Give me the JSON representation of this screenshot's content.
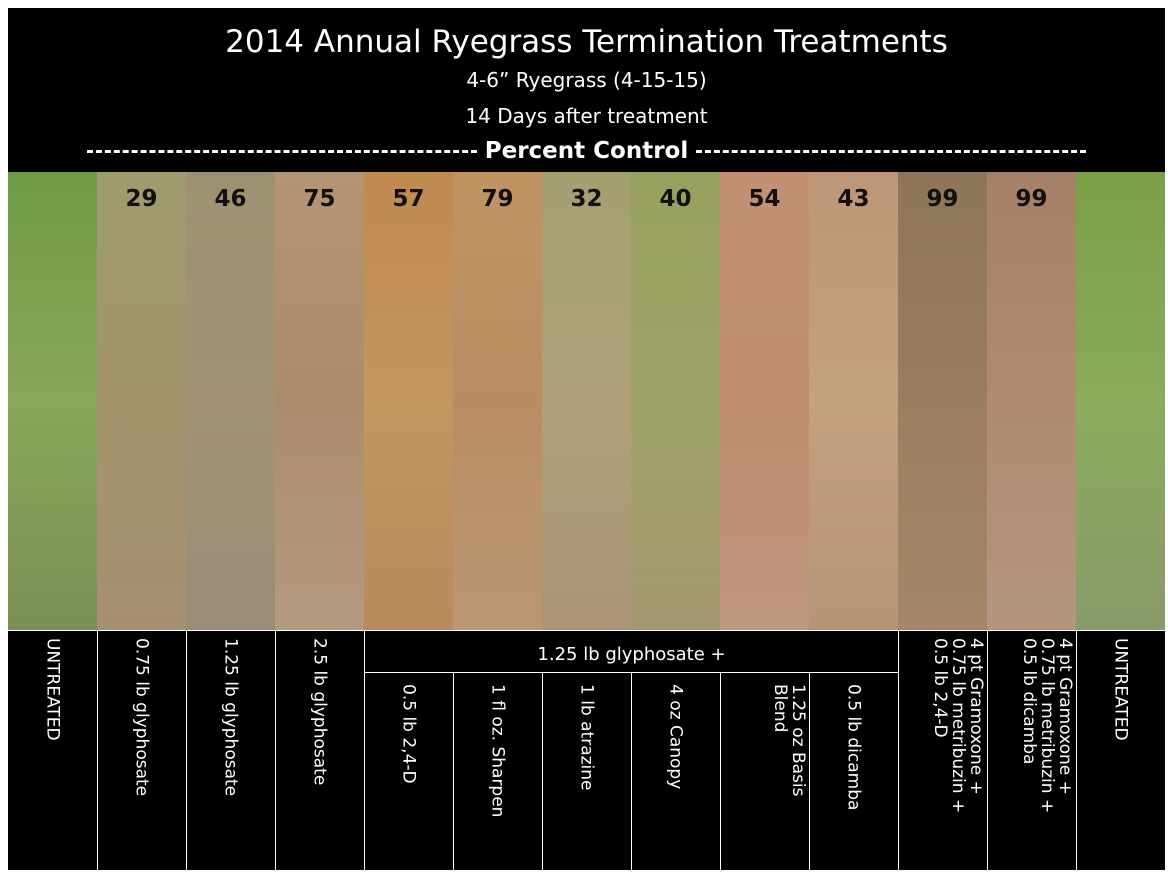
{
  "header": {
    "title": "2014 Annual Ryegrass Termination Treatments",
    "subtitle": "4-6” Ryegrass (4-15-15)",
    "timing": "14 Days after treatment",
    "measure": "Percent Control"
  },
  "group_label": "1.25 lb glyphosate +",
  "columns": [
    {
      "percent": null,
      "label": [
        "UNTREATED"
      ]
    },
    {
      "percent": 29,
      "label": [
        "0.75  lb glyphosate"
      ]
    },
    {
      "percent": 46,
      "label": [
        "1.25 lb glyphosate"
      ]
    },
    {
      "percent": 75,
      "label": [
        "2.5 lb glyphosate"
      ]
    },
    {
      "percent": 57,
      "label": [
        "0.5 lb 2,4-D"
      ]
    },
    {
      "percent": 79,
      "label": [
        "1 fl oz. Sharpen"
      ]
    },
    {
      "percent": 32,
      "label": [
        "1 lb atrazine"
      ]
    },
    {
      "percent": 40,
      "label": [
        "4 oz Canopy"
      ]
    },
    {
      "percent": 54,
      "label": [
        "1.25 oz Basis",
        "Blend"
      ]
    },
    {
      "percent": 43,
      "label": [
        "0.5 lb dicamba"
      ]
    },
    {
      "percent": 99,
      "label": [
        "4 pt Gramoxone +",
        "0.75 lb metribuzin +",
        "0.5 lb 2,4-D"
      ]
    },
    {
      "percent": 99,
      "label": [
        "4 pt Gramoxone +",
        "0.75 lb metribuzin +",
        "0.5 lb dicamba"
      ]
    },
    {
      "percent": null,
      "label": [
        "UNTREATED"
      ]
    }
  ]
}
